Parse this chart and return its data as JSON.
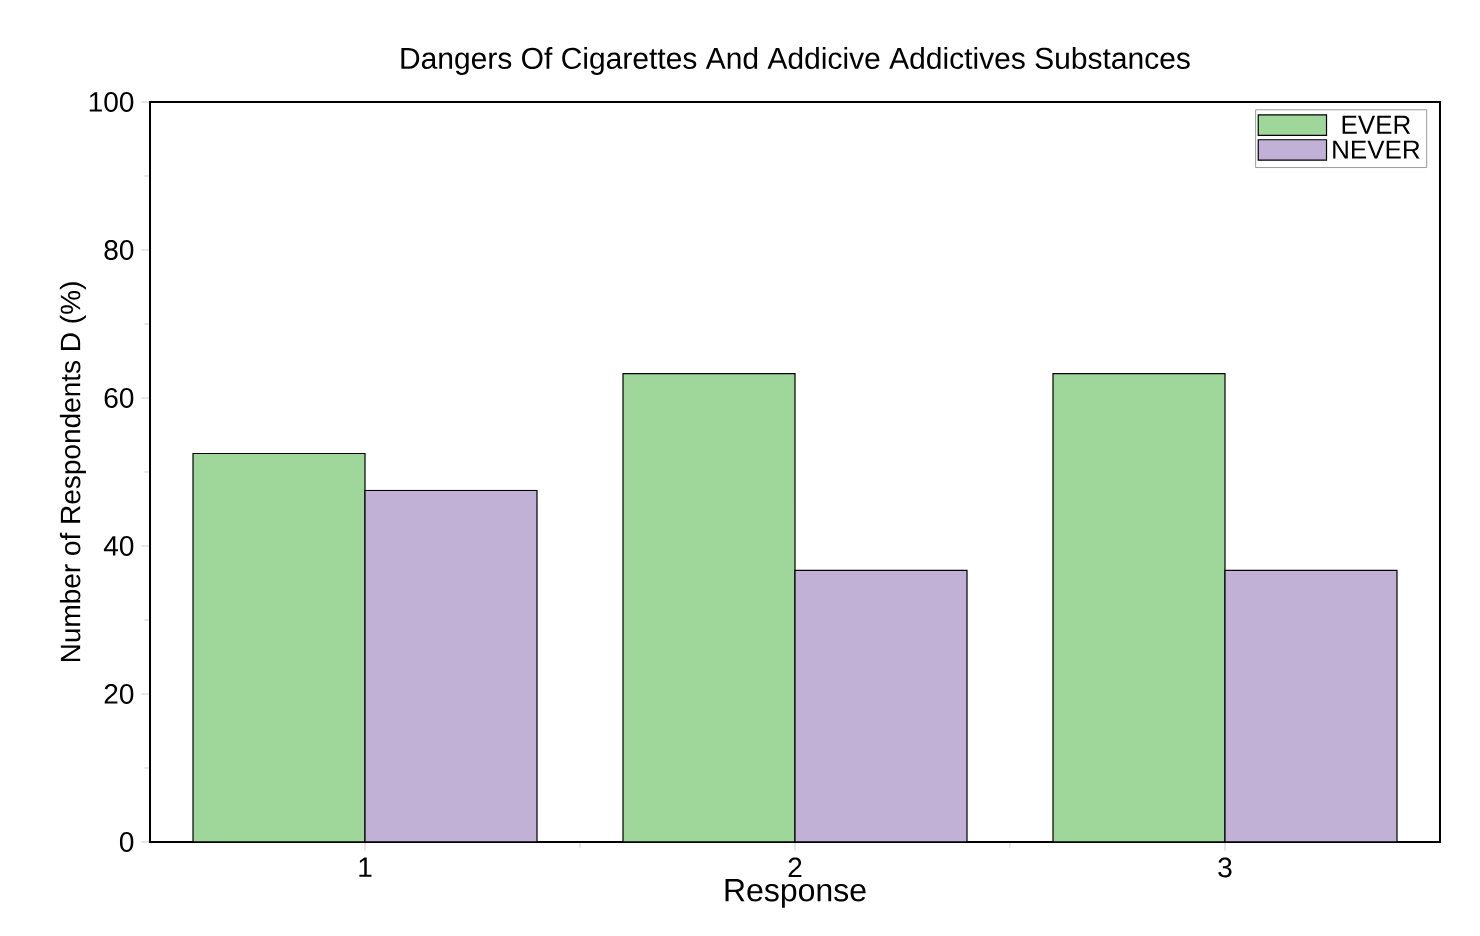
{
  "chart_data": {
    "type": "bar",
    "title": "Dangers Of Cigarettes And Addicive Addictives Substances",
    "xlabel": "Response",
    "ylabel": "Number of Respondents D (%)",
    "categories": [
      "1",
      "2",
      "3"
    ],
    "series": [
      {
        "name": "EVER",
        "color": "#9fd79b",
        "values": [
          52.5,
          63.3,
          63.3
        ]
      },
      {
        "name": "NEVER",
        "color": "#c2b1d7",
        "values": [
          47.5,
          36.7,
          36.7
        ]
      }
    ],
    "ylim": [
      0,
      100
    ],
    "yticks": [
      0,
      20,
      40,
      60,
      80,
      100
    ],
    "grid": false,
    "legend": "top right"
  }
}
